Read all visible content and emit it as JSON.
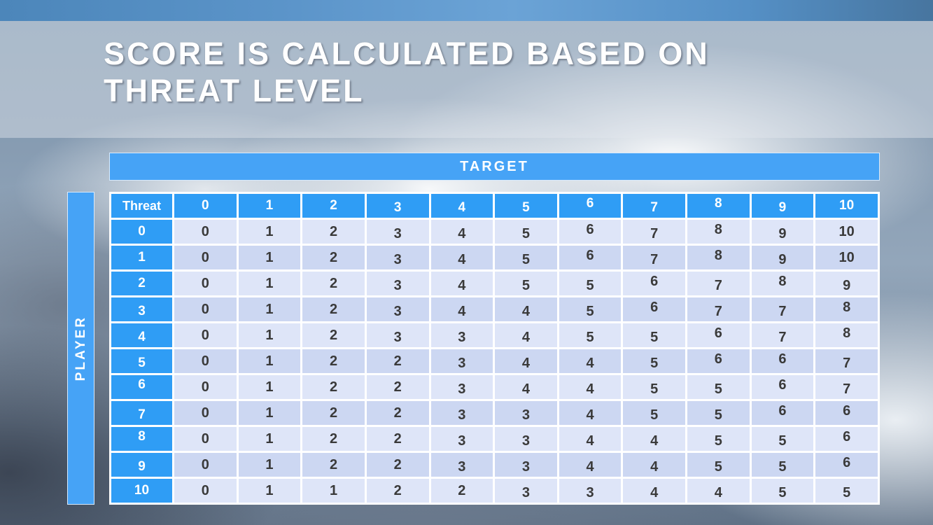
{
  "slide": {
    "title_line1": "SCORE IS CALCULATED BASED ON",
    "title_line2": "THREAT LEVEL",
    "target_label": "TARGET",
    "player_label": "PLAYER"
  },
  "colors": {
    "accent_blue": "#2F9DF5",
    "bar_blue": "#46A3F6",
    "band_light": "#DEE5F8",
    "band_dark": "#CCD7F2",
    "top_strip_blue": "#5B94C9",
    "title_text": "#FFFFFF",
    "cell_text": "#3A3A3A"
  },
  "chart_data": {
    "type": "table",
    "title": "Score is calculated based on threat level",
    "x_axis_label": "TARGET",
    "y_axis_label": "PLAYER",
    "corner_header": "Threat",
    "column_headers": [
      "0",
      "1",
      "2",
      "3",
      "4",
      "5",
      "6",
      "7",
      "8",
      "9",
      "10"
    ],
    "row_headers": [
      "0",
      "1",
      "2",
      "3",
      "4",
      "5",
      "6",
      "7",
      "8",
      "9",
      "10"
    ],
    "rows": [
      [
        0,
        1,
        2,
        3,
        4,
        5,
        6,
        7,
        8,
        9,
        10
      ],
      [
        0,
        1,
        2,
        3,
        4,
        5,
        6,
        7,
        8,
        9,
        10
      ],
      [
        0,
        1,
        2,
        3,
        4,
        5,
        5,
        6,
        7,
        8,
        9
      ],
      [
        0,
        1,
        2,
        3,
        4,
        4,
        5,
        6,
        7,
        7,
        8
      ],
      [
        0,
        1,
        2,
        3,
        3,
        4,
        5,
        5,
        6,
        7,
        8
      ],
      [
        0,
        1,
        2,
        2,
        3,
        4,
        4,
        5,
        6,
        6,
        7
      ],
      [
        0,
        1,
        2,
        2,
        3,
        4,
        4,
        5,
        5,
        6,
        7
      ],
      [
        0,
        1,
        2,
        2,
        3,
        3,
        4,
        5,
        5,
        6,
        6
      ],
      [
        0,
        1,
        2,
        2,
        3,
        3,
        4,
        4,
        5,
        5,
        6
      ],
      [
        0,
        1,
        2,
        2,
        3,
        3,
        4,
        4,
        5,
        5,
        6
      ],
      [
        0,
        1,
        1,
        2,
        2,
        3,
        3,
        4,
        4,
        5,
        5
      ]
    ]
  }
}
